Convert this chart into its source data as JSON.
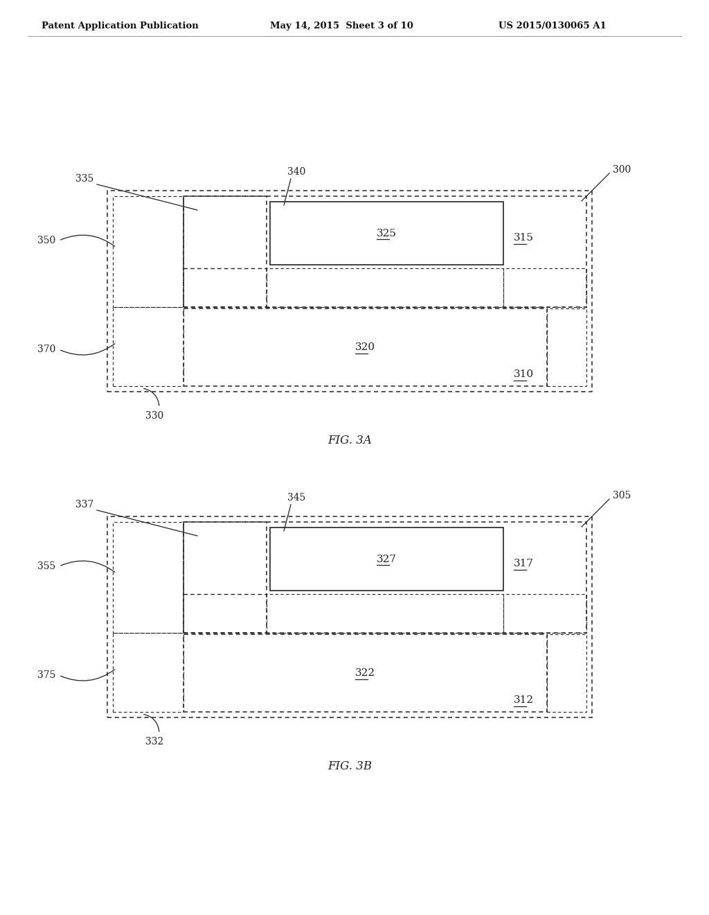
{
  "header_left": "Patent Application Publication",
  "header_mid": "May 14, 2015  Sheet 3 of 10",
  "header_right": "US 2015/0130065 A1",
  "background": "#ffffff",
  "line_color": "#222222",
  "fig_a_label": "FIG. 3A",
  "fig_b_label": "FIG. 3B",
  "diagrams": [
    {
      "label": "FIG. 3A",
      "refs": {
        "outer": "300",
        "left_upper_box": "335",
        "center_upper": "340",
        "cu_plug": "325",
        "dielectric": "315",
        "left_liner_upper": "350",
        "left_liner_lower": "370",
        "cu_lower": "320",
        "substrate": "310",
        "base": "330"
      }
    },
    {
      "label": "FIG. 3B",
      "refs": {
        "outer": "305",
        "left_upper_box": "337",
        "center_upper": "345",
        "cu_plug": "327",
        "dielectric": "317",
        "left_liner_upper": "355",
        "left_liner_lower": "375",
        "cu_lower": "322",
        "substrate": "312",
        "base": "332"
      }
    }
  ]
}
